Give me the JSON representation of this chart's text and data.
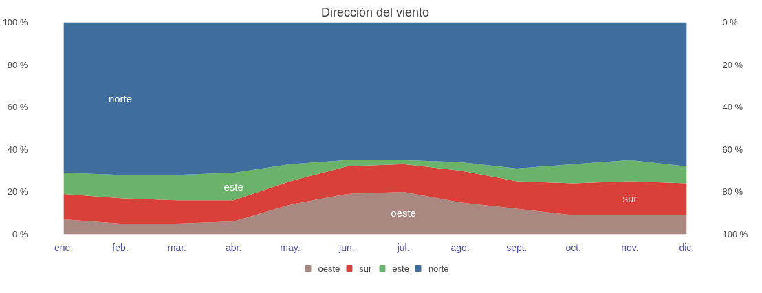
{
  "chart_data": {
    "type": "area",
    "title": "Dirección del viento",
    "stacked": true,
    "categories": [
      "ene.",
      "feb.",
      "mar.",
      "abr.",
      "may.",
      "jun.",
      "jul.",
      "ago.",
      "sept.",
      "oct.",
      "nov.",
      "dic."
    ],
    "series": [
      {
        "name": "oeste",
        "color": "#a88880",
        "values": [
          7,
          5,
          5,
          6,
          14,
          19,
          20,
          15,
          12,
          9,
          9,
          9
        ]
      },
      {
        "name": "sur",
        "color": "#d9403a",
        "values": [
          12,
          12,
          11,
          10,
          11,
          13,
          13,
          15,
          13,
          15,
          16,
          15
        ]
      },
      {
        "name": "este",
        "color": "#6bb36b",
        "values": [
          10,
          11,
          12,
          13,
          8,
          3,
          2,
          4,
          6,
          9,
          10,
          8
        ]
      },
      {
        "name": "norte",
        "color": "#3f6e9e",
        "values": [
          71,
          72,
          72,
          71,
          67,
          65,
          65,
          66,
          69,
          67,
          65,
          68
        ]
      }
    ],
    "ylim": [
      0,
      100
    ],
    "yticks": [
      {
        "value": 0,
        "label": "0 %"
      },
      {
        "value": 20,
        "label": "20 %"
      },
      {
        "value": 40,
        "label": "40 %"
      },
      {
        "value": 60,
        "label": "60 %"
      },
      {
        "value": 80,
        "label": "80 %"
      },
      {
        "value": 100,
        "label": "100 %"
      }
    ],
    "y2lim": [
      100,
      0
    ],
    "y2ticks": [
      {
        "value": 0,
        "label": "0 %"
      },
      {
        "value": 20,
        "label": "20 %"
      },
      {
        "value": 40,
        "label": "40 %"
      },
      {
        "value": 60,
        "label": "60 %"
      },
      {
        "value": 80,
        "label": "80 %"
      },
      {
        "value": 100,
        "label": "100 %"
      }
    ],
    "legend": "bottom",
    "grid": false
  }
}
